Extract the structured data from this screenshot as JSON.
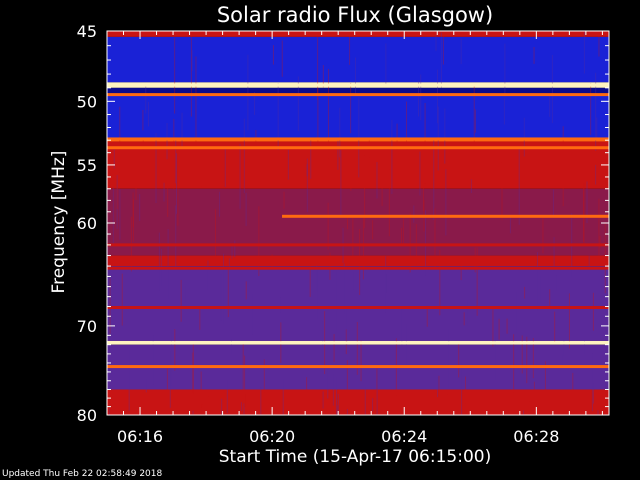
{
  "chart_data": {
    "type": "heatmap",
    "title": "Solar radio Flux (Glasgow)",
    "xlabel": "Start Time (15-Apr-17 06:15:00)",
    "ylabel": "Frequency [MHz]",
    "x_range_minutes": [
      0,
      15.2
    ],
    "x_ticks": [
      {
        "label": "06:16",
        "minutes": 1
      },
      {
        "label": "06:20",
        "minutes": 5
      },
      {
        "label": "06:24",
        "minutes": 9
      },
      {
        "label": "06:28",
        "minutes": 13
      }
    ],
    "y_range_mhz": [
      45,
      80
    ],
    "y_scale": "log",
    "y_ticks": [
      45,
      50,
      55,
      60,
      70,
      80
    ],
    "y_minor_ticks": [
      46,
      47,
      48,
      49,
      51,
      52,
      53,
      54,
      56,
      57,
      58,
      59,
      61,
      62,
      63,
      64,
      65,
      66,
      67,
      68,
      69,
      71,
      72,
      73,
      74,
      75,
      76,
      77,
      78,
      79
    ],
    "bands": [
      {
        "mhz_from": 45.0,
        "mhz_to": 45.4,
        "level": "red"
      },
      {
        "mhz_from": 45.4,
        "mhz_to": 48.6,
        "level": "blue"
      },
      {
        "mhz_from": 48.6,
        "mhz_to": 49.0,
        "level": "white"
      },
      {
        "mhz_from": 49.0,
        "mhz_to": 49.6,
        "level": "deepblue"
      },
      {
        "mhz_from": 49.6,
        "mhz_to": 52.8,
        "level": "blue"
      },
      {
        "mhz_from": 52.8,
        "mhz_to": 53.1,
        "level": "orange"
      },
      {
        "mhz_from": 53.1,
        "mhz_to": 57.0,
        "level": "red"
      },
      {
        "mhz_from": 57.0,
        "mhz_to": 63.0,
        "level": "redpurple"
      },
      {
        "mhz_from": 63.0,
        "mhz_to": 64.0,
        "level": "red"
      },
      {
        "mhz_from": 64.0,
        "mhz_to": 71.6,
        "level": "purple"
      },
      {
        "mhz_from": 71.6,
        "mhz_to": 72.0,
        "level": "white"
      },
      {
        "mhz_from": 72.0,
        "mhz_to": 77.0,
        "level": "purple"
      },
      {
        "mhz_from": 77.0,
        "mhz_to": 80.0,
        "level": "red"
      }
    ],
    "emission_lines": [
      {
        "mhz": 48.8,
        "level": "white"
      },
      {
        "mhz": 49.5,
        "level": "orange"
      },
      {
        "mhz": 52.9,
        "level": "orange"
      },
      {
        "mhz": 53.6,
        "level": "orange"
      },
      {
        "mhz": 59.4,
        "level": "orange",
        "from_minute": 5.3
      },
      {
        "mhz": 62.0,
        "level": "red"
      },
      {
        "mhz": 64.2,
        "level": "red"
      },
      {
        "mhz": 68.1,
        "level": "red"
      },
      {
        "mhz": 71.8,
        "level": "white"
      },
      {
        "mhz": 74.4,
        "level": "orange"
      }
    ],
    "colors": {
      "deepblue": "#0a0a8c",
      "blue": "#1a22d6",
      "purple": "#5a2a9a",
      "redpurple": "#8a1a4a",
      "red": "#c81414",
      "orange": "#ff6a10",
      "white": "#fff4c0",
      "frame": "#ffffff"
    }
  },
  "footer": {
    "updated_text": "Updated Thu Feb 22 02:58:49 2018"
  }
}
